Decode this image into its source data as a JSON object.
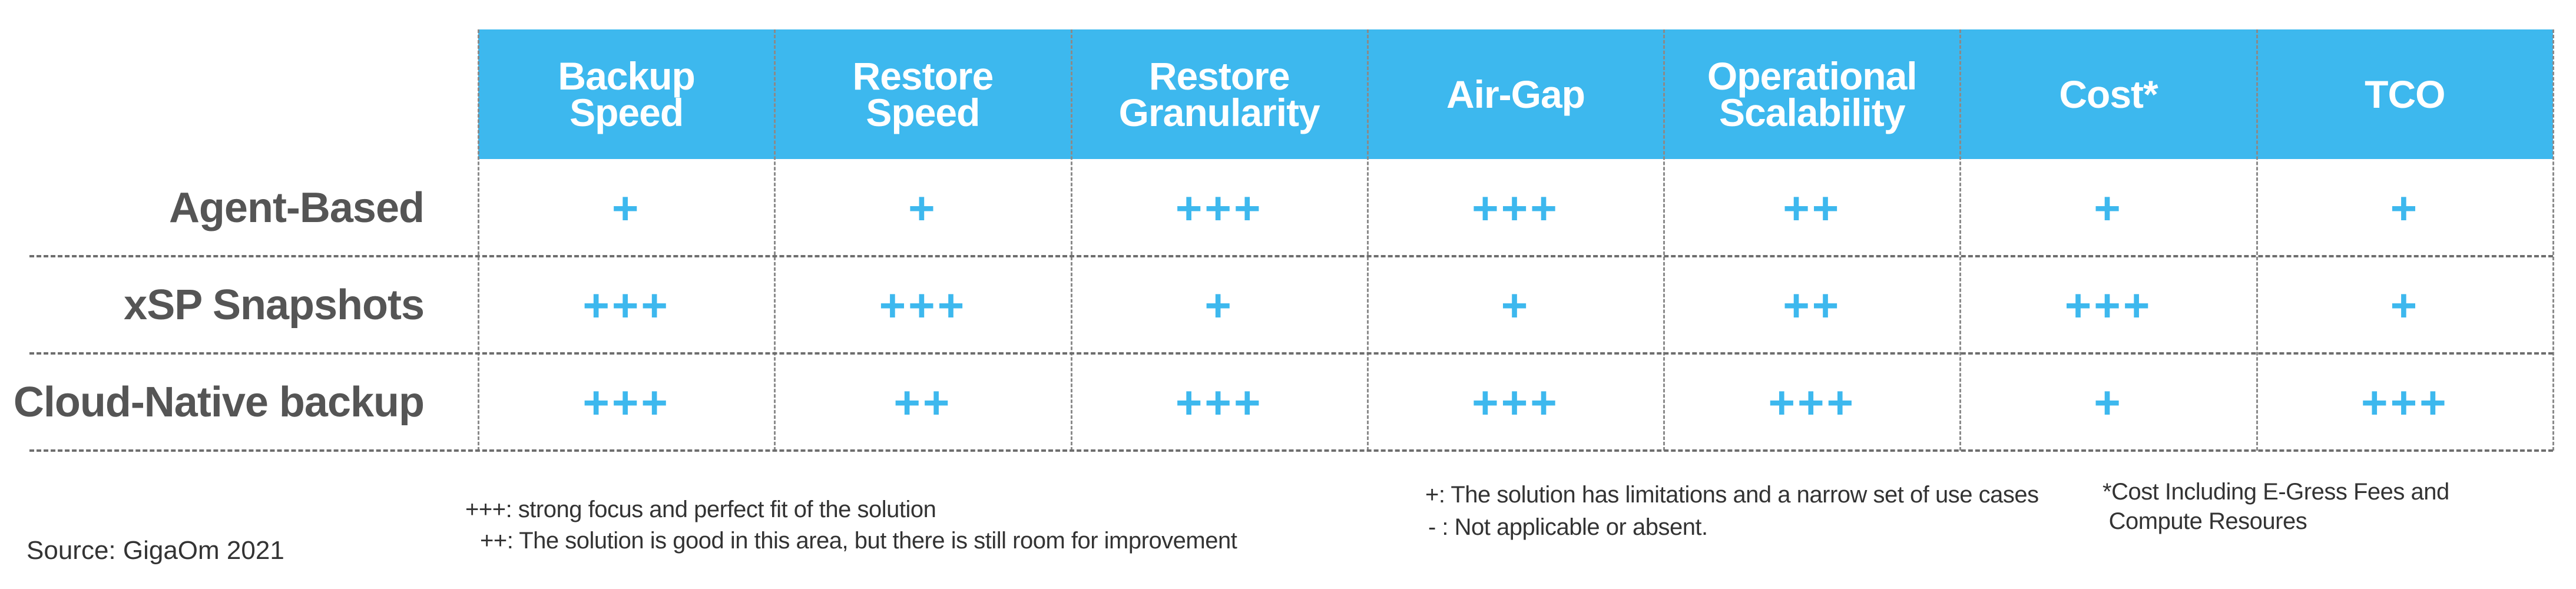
{
  "chart_data": {
    "type": "table",
    "columns": [
      "Backup\nSpeed",
      "Restore\nSpeed",
      "Restore\nGranularity",
      "Air-Gap",
      "Operational\nScalability",
      "Cost*",
      "TCO"
    ],
    "rows": [
      {
        "label": "Agent-Based",
        "values": [
          "+",
          "+",
          "+++",
          "+++",
          "++",
          "+",
          "+"
        ]
      },
      {
        "label": "xSP Snapshots",
        "values": [
          "+++",
          "+++",
          "+",
          "+",
          "++",
          "+++",
          "+"
        ]
      },
      {
        "label": "Cloud-Native backup",
        "values": [
          "+++",
          "++",
          "+++",
          "+++",
          "+++",
          "+",
          "+++"
        ]
      }
    ]
  },
  "legend": {
    "strong": "+++: strong focus and perfect fit of the solution",
    "good": "++: The solution is good in this area, but there is still room for improvement",
    "limited": "+: The solution has limitations and a narrow set of use cases",
    "absent": "- : Not applicable or absent.",
    "cost_note": "*Cost Including E-Gress Fees and\n Compute Resoures"
  },
  "source": "Source: GigaOm 2021",
  "colors": {
    "header_bg": "#3db8ee",
    "header_text": "#ffffff",
    "mark": "#3db8ee",
    "row_label": "#555555"
  }
}
